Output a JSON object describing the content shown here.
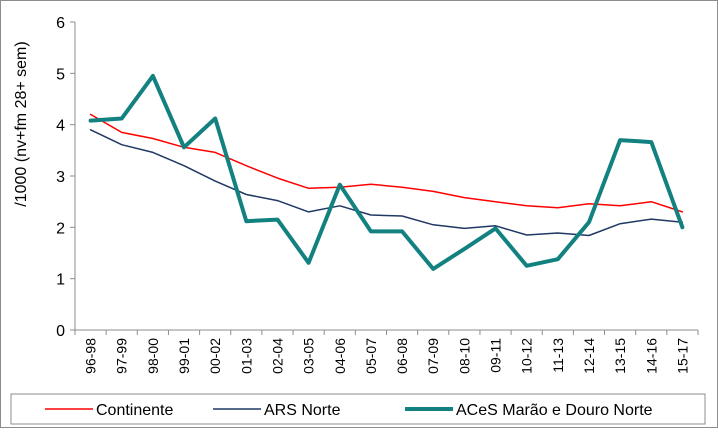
{
  "chart_data": {
    "type": "line",
    "ylabel": "/1000 (nv+fm 28+ sem)",
    "xlabel": "",
    "ylim": [
      0,
      6
    ],
    "yticks": [
      "0",
      "1",
      "2",
      "3",
      "4",
      "5",
      "6"
    ],
    "grid": false,
    "legend_position": "bottom",
    "categories": [
      "96-98",
      "97-99",
      "98-00",
      "99-01",
      "00-02",
      "01-03",
      "02-04",
      "03-05",
      "04-06",
      "05-07",
      "06-08",
      "07-09",
      "08-10",
      "09-11",
      "10-12",
      "11-13",
      "12-14",
      "13-15",
      "14-16",
      "15-17"
    ],
    "series": [
      {
        "name": "Continente",
        "color": "#ff0000",
        "width": 1.5,
        "values": [
          4.2,
          3.85,
          3.73,
          3.56,
          3.46,
          3.2,
          2.96,
          2.76,
          2.78,
          2.84,
          2.78,
          2.7,
          2.58,
          2.5,
          2.42,
          2.38,
          2.46,
          2.42,
          2.5,
          2.3
        ]
      },
      {
        "name": "ARS Norte",
        "color": "#1f3864",
        "width": 1.5,
        "values": [
          3.9,
          3.61,
          3.46,
          3.2,
          2.9,
          2.64,
          2.52,
          2.3,
          2.42,
          2.24,
          2.22,
          2.05,
          1.98,
          2.03,
          1.85,
          1.89,
          1.84,
          2.07,
          2.16,
          2.1
        ]
      },
      {
        "name": "ACeS Marão e Douro Norte",
        "color": "#128180",
        "width": 4,
        "values": [
          4.08,
          4.12,
          4.95,
          3.56,
          4.12,
          2.12,
          2.15,
          1.31,
          2.83,
          1.92,
          1.92,
          1.19,
          1.58,
          1.98,
          1.25,
          1.38,
          2.1,
          3.7,
          3.66,
          2.0
        ]
      }
    ]
  }
}
